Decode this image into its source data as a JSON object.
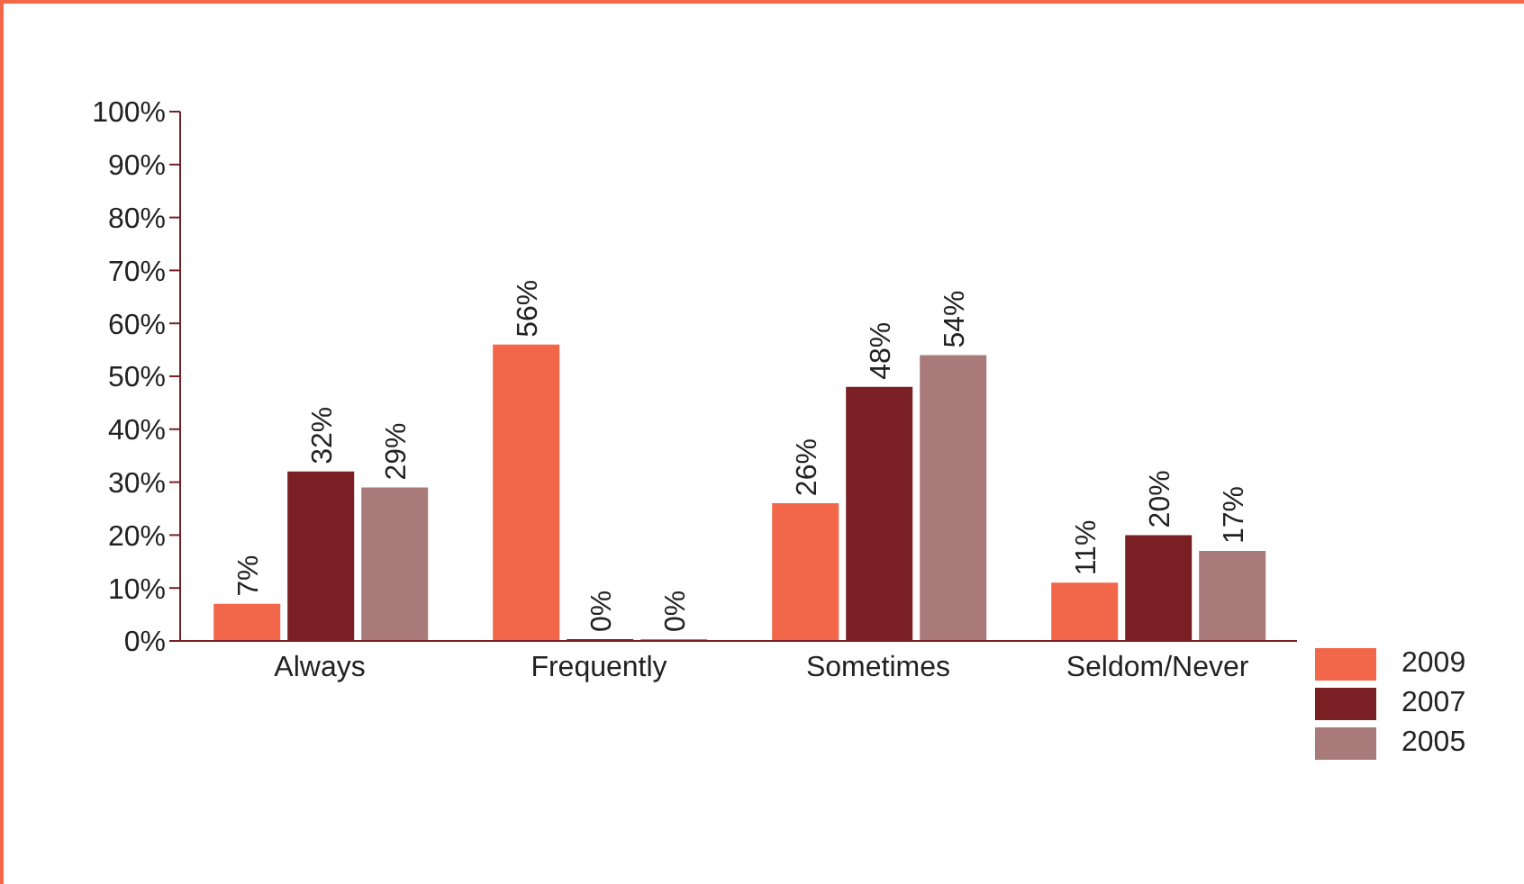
{
  "chart_data": {
    "type": "bar",
    "categories": [
      "Always",
      "Frequently",
      "Sometimes",
      "Seldom/Never"
    ],
    "series": [
      {
        "name": "2009",
        "color": "#f26649",
        "values": [
          7,
          56,
          26,
          11
        ],
        "value_labels": [
          "7%",
          "56%",
          "26%",
          "11%"
        ]
      },
      {
        "name": "2007",
        "color": "#7a1f23",
        "values": [
          32,
          0,
          48,
          20
        ],
        "value_labels": [
          "32%",
          "0%",
          "48%",
          "20%"
        ]
      },
      {
        "name": "2005",
        "color": "#a97a7a",
        "values": [
          29,
          0,
          54,
          17
        ],
        "value_labels": [
          "29%",
          "0%",
          "54%",
          "17%"
        ]
      }
    ],
    "ylim": [
      0,
      100
    ],
    "yticks": [
      {
        "value": 0,
        "label": "0%"
      },
      {
        "value": 10,
        "label": "10%"
      },
      {
        "value": 20,
        "label": "20%"
      },
      {
        "value": 30,
        "label": "30%"
      },
      {
        "value": 40,
        "label": "40%"
      },
      {
        "value": 50,
        "label": "50%"
      },
      {
        "value": 60,
        "label": "60%"
      },
      {
        "value": 70,
        "label": "70%"
      },
      {
        "value": 80,
        "label": "80%"
      },
      {
        "value": 90,
        "label": "90%"
      },
      {
        "value": 100,
        "label": "100%"
      }
    ],
    "grid": false,
    "legend": "bottom right"
  }
}
